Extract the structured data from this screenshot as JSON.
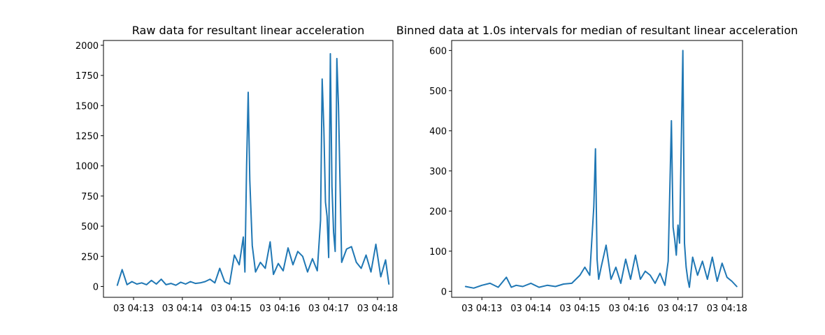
{
  "chart_data": [
    {
      "type": "line",
      "title": "Raw data for resultant linear acceleration",
      "xlabel": "",
      "ylabel": "",
      "grid": false,
      "color": "#1f77b4",
      "x_unit": "minutes",
      "xlim": [
        "03 04:12:23",
        "03 04:18:19"
      ],
      "ylim": [
        -90,
        2040
      ],
      "x_ticks": [
        {
          "t": "03 04:13:00",
          "label": "03 04:13"
        },
        {
          "t": "03 04:14:00",
          "label": "03 04:14"
        },
        {
          "t": "03 04:15:00",
          "label": "03 04:15"
        },
        {
          "t": "03 04:16:00",
          "label": "03 04:16"
        },
        {
          "t": "03 04:17:00",
          "label": "03 04:17"
        },
        {
          "t": "03 04:18:00",
          "label": "03 04:18"
        }
      ],
      "y_ticks": [
        0,
        250,
        500,
        750,
        1000,
        1250,
        1500,
        1750,
        2000
      ],
      "series": [
        {
          "x": [
            "03 04:12:40",
            "03 04:12:46",
            "03 04:12:52",
            "03 04:12:58",
            "03 04:13:04",
            "03 04:13:10",
            "03 04:13:16",
            "03 04:13:22",
            "03 04:13:28",
            "03 04:13:34",
            "03 04:13:40",
            "03 04:13:46",
            "03 04:13:52",
            "03 04:13:58",
            "03 04:14:04",
            "03 04:14:10",
            "03 04:14:16",
            "03 04:14:22",
            "03 04:14:28",
            "03 04:14:34",
            "03 04:14:40",
            "03 04:14:46",
            "03 04:14:52",
            "03 04:14:58",
            "03 04:15:04",
            "03 04:15:10",
            "03 04:15:15",
            "03 04:15:17",
            "03 04:15:19",
            "03 04:15:21",
            "03 04:15:23",
            "03 04:15:26",
            "03 04:15:30",
            "03 04:15:36",
            "03 04:15:42",
            "03 04:15:48",
            "03 04:15:52",
            "03 04:15:58",
            "03 04:16:04",
            "03 04:16:10",
            "03 04:16:16",
            "03 04:16:22",
            "03 04:16:28",
            "03 04:16:34",
            "03 04:16:40",
            "03 04:16:46",
            "03 04:16:50",
            "03 04:16:52",
            "03 04:16:54",
            "03 04:16:56",
            "03 04:16:58",
            "03 04:17:00",
            "03 04:17:02",
            "03 04:17:04",
            "03 04:17:06",
            "03 04:17:08",
            "03 04:17:10",
            "03 04:17:12",
            "03 04:17:16",
            "03 04:17:22",
            "03 04:17:28",
            "03 04:17:34",
            "03 04:17:40",
            "03 04:17:46",
            "03 04:17:52",
            "03 04:17:58",
            "03 04:18:04",
            "03 04:18:10",
            "03 04:18:14"
          ],
          "y": [
            10,
            140,
            15,
            40,
            20,
            30,
            15,
            50,
            20,
            60,
            15,
            25,
            10,
            35,
            20,
            40,
            25,
            30,
            40,
            60,
            30,
            150,
            40,
            20,
            260,
            180,
            410,
            120,
            1000,
            1610,
            880,
            340,
            120,
            200,
            150,
            370,
            100,
            190,
            130,
            320,
            180,
            290,
            250,
            120,
            230,
            130,
            550,
            1720,
            1310,
            700,
            580,
            240,
            1930,
            830,
            450,
            290,
            1890,
            1500,
            200,
            310,
            330,
            200,
            150,
            260,
            120,
            350,
            80,
            220,
            20
          ]
        }
      ]
    },
    {
      "type": "line",
      "title": "Binned data at 1.0s intervals for median of resultant linear acceleration",
      "xlabel": "",
      "ylabel": "",
      "grid": false,
      "color": "#1f77b4",
      "x_unit": "minutes",
      "xlim": [
        "03 04:12:23",
        "03 04:18:19"
      ],
      "ylim": [
        -15,
        625
      ],
      "x_ticks": [
        {
          "t": "03 04:13:00",
          "label": "03 04:13"
        },
        {
          "t": "03 04:14:00",
          "label": "03 04:14"
        },
        {
          "t": "03 04:15:00",
          "label": "03 04:15"
        },
        {
          "t": "03 04:16:00",
          "label": "03 04:16"
        },
        {
          "t": "03 04:17:00",
          "label": "03 04:17"
        },
        {
          "t": "03 04:18:00",
          "label": "03 04:18"
        }
      ],
      "y_ticks": [
        0,
        100,
        200,
        300,
        400,
        500,
        600
      ],
      "series": [
        {
          "x": [
            "03 04:12:40",
            "03 04:12:50",
            "03 04:13:00",
            "03 04:13:10",
            "03 04:13:20",
            "03 04:13:30",
            "03 04:13:36",
            "03 04:13:42",
            "03 04:13:50",
            "03 04:14:00",
            "03 04:14:10",
            "03 04:14:20",
            "03 04:14:30",
            "03 04:14:40",
            "03 04:14:50",
            "03 04:15:00",
            "03 04:15:06",
            "03 04:15:12",
            "03 04:15:17",
            "03 04:15:19",
            "03 04:15:21",
            "03 04:15:23",
            "03 04:15:26",
            "03 04:15:32",
            "03 04:15:38",
            "03 04:15:44",
            "03 04:15:50",
            "03 04:15:56",
            "03 04:16:02",
            "03 04:16:08",
            "03 04:16:14",
            "03 04:16:20",
            "03 04:16:26",
            "03 04:16:32",
            "03 04:16:38",
            "03 04:16:44",
            "03 04:16:48",
            "03 04:16:52",
            "03 04:16:54",
            "03 04:16:56",
            "03 04:16:58",
            "03 04:17:00",
            "03 04:17:02",
            "03 04:17:06",
            "03 04:17:08",
            "03 04:17:10",
            "03 04:17:12",
            "03 04:17:14",
            "03 04:17:18",
            "03 04:17:24",
            "03 04:17:30",
            "03 04:17:36",
            "03 04:17:42",
            "03 04:17:48",
            "03 04:17:54",
            "03 04:18:00",
            "03 04:18:06",
            "03 04:18:12"
          ],
          "y": [
            12,
            8,
            15,
            20,
            10,
            35,
            10,
            15,
            12,
            20,
            10,
            15,
            12,
            18,
            20,
            40,
            60,
            40,
            210,
            355,
            80,
            30,
            60,
            115,
            30,
            60,
            20,
            80,
            30,
            90,
            30,
            50,
            40,
            20,
            45,
            15,
            75,
            425,
            160,
            130,
            90,
            165,
            120,
            600,
            120,
            60,
            30,
            10,
            85,
            40,
            75,
            30,
            85,
            25,
            70,
            35,
            25,
            12
          ]
        }
      ]
    }
  ]
}
